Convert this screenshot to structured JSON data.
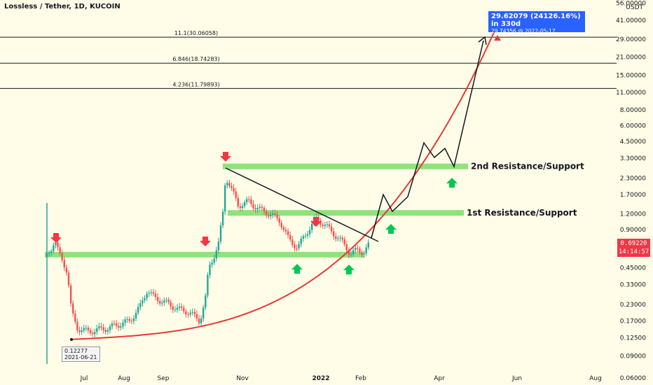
{
  "header": {
    "title": "Lossless / Tether, 1D, KUCOIN",
    "currency": "USDT"
  },
  "chart_data": {
    "type": "candlestick",
    "title": "Lossless / Tether, 1D, KUCOIN",
    "scale": "log",
    "y_ticks": [
      "56.00000",
      "41.00000",
      "29.00000",
      "21.00000",
      "15.00000",
      "11.00000",
      "8.00000",
      "6.00000",
      "4.50000",
      "3.30000",
      "2.30000",
      "1.70000",
      "1.20000",
      "0.90000",
      "0.65000",
      "0.45000",
      "0.33000",
      "0.23000",
      "0.17000",
      "0.12500",
      "0.09000",
      "0.06000"
    ],
    "x_ticks": [
      "Jul",
      "Aug",
      "Sep",
      "Nov",
      "2022",
      "Feb",
      "Apr",
      "Jun",
      "Aug"
    ],
    "fib_levels": [
      {
        "label": "11.1(30.06058)",
        "value": 30.06058
      },
      {
        "label": "6.846(18.74283)",
        "value": 18.74283
      },
      {
        "label": "4.236(11.79893)",
        "value": 11.79893
      }
    ],
    "zones": [
      {
        "label": "2nd Resistance/Support",
        "value": 2.85
      },
      {
        "label": "1st Resistance/Support",
        "value": 1.22
      }
    ],
    "support_zone": 0.57,
    "last_price": "0.69220",
    "countdown": "14:14:57",
    "low_marker": {
      "price": "0.12277",
      "date": "2021-06-21"
    },
    "projection": {
      "line1": "29.62079 (24126.16%) in 330d",
      "line2": "29.74356 @ 2022-05-17"
    },
    "colors": {
      "up": "#26a69a",
      "down": "#ef5350",
      "zone": "#90e27a",
      "curve": "#e53935",
      "arrow_down": "#f23645",
      "arrow_up": "#00c853",
      "badge": "#2962ff"
    }
  }
}
